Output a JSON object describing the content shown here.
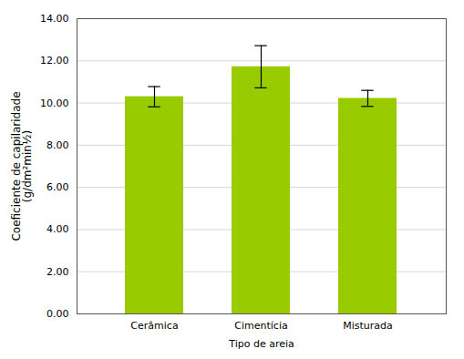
{
  "chart_data": {
    "type": "bar",
    "categories": [
      "Cerâmica",
      "Cimentícia",
      "Misturada"
    ],
    "values": [
      10.3,
      11.72,
      10.22
    ],
    "errors": [
      0.48,
      1.0,
      0.38
    ],
    "color": "#99CC00",
    "xlabel": "Tipo de areia",
    "ylabel": "Coeficiente de capilaridade\n(g/dm²min½)",
    "ylim": [
      0,
      14.0
    ],
    "yticks": [
      {
        "value": 0.0,
        "label": "0.00"
      },
      {
        "value": 2.0,
        "label": "2.00"
      },
      {
        "value": 4.0,
        "label": "4.00"
      },
      {
        "value": 6.0,
        "label": "6.00"
      },
      {
        "value": 8.0,
        "label": "8.00"
      },
      {
        "value": 10.0,
        "label": "10.00"
      },
      {
        "value": 12.0,
        "label": "12.00"
      },
      {
        "value": 14.0,
        "label": "14.00"
      }
    ],
    "grid": true
  }
}
